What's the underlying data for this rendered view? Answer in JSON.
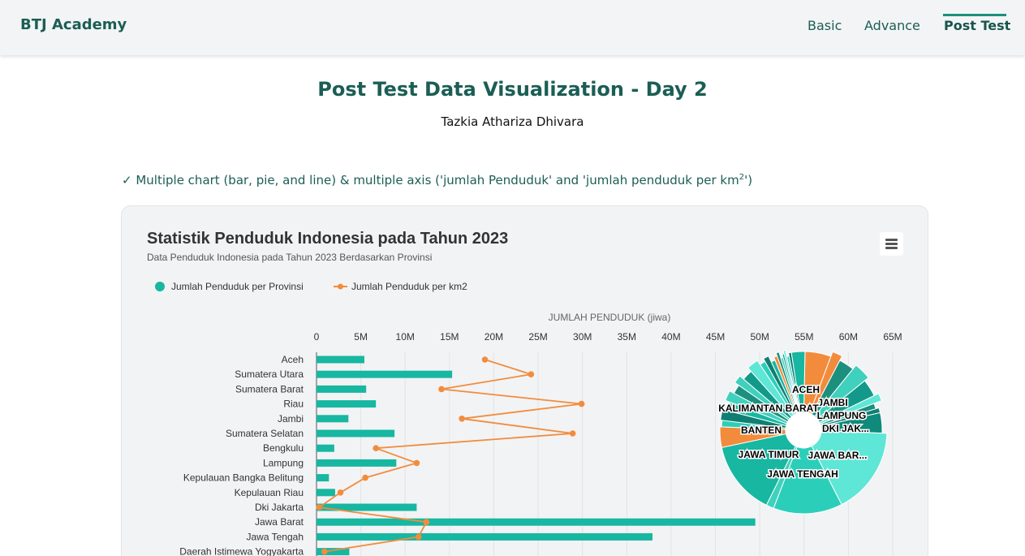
{
  "navbar": {
    "brand": "BTJ Academy",
    "links": [
      {
        "label": "Basic"
      },
      {
        "label": "Advance"
      },
      {
        "label": "Post Test",
        "active": true
      }
    ]
  },
  "page": {
    "title": "Post Test Data Visualization - Day 2",
    "author": "Tazkia Athariza Dhivara",
    "task_prefix": "✓ Multiple chart (bar, pie, and line) & multiple axis ('jumlah Penduduk' and 'jumlah penduduk per km",
    "task_sup": "2",
    "task_suffix": "')"
  },
  "colors": {
    "brand": "#1b5e55",
    "bar": "#17b7a1",
    "line": "#f28c3c"
  },
  "chart_data": {
    "type": "bar",
    "title": "Statistik Penduduk Indonesia pada Tahun 2023",
    "subtitle": "Data Penduduk Indonesia pada Tahun 2023 Berdasarkan Provinsi",
    "menu_icon": "hamburger-menu-icon",
    "xlabel": "JUMLAH PENDUDUK (jiwa)",
    "xlim": [
      0,
      65000000
    ],
    "x_ticks": [
      "0",
      "5M",
      "10M",
      "15M",
      "20M",
      "25M",
      "30M",
      "35M",
      "40M",
      "45M",
      "50M",
      "55M",
      "60M",
      "65M"
    ],
    "legend": {
      "placement": "top-left",
      "items": [
        "Jumlah Penduduk per Provinsi",
        "Jumlah Penduduk per km2"
      ]
    },
    "grid": true,
    "categories": [
      "Aceh",
      "Sumatera Utara",
      "Sumatera Barat",
      "Riau",
      "Jambi",
      "Sumatera Selatan",
      "Bengkulu",
      "Lampung",
      "Kepulauan Bangka Belitung",
      "Kepulauan Riau",
      "Dki Jakarta",
      "Jawa Barat",
      "Jawa Tengah",
      "Daerah Istimewa Yogyakarta"
    ],
    "series": [
      {
        "name": "Jumlah Penduduk per Provinsi",
        "type": "bar",
        "values": [
          5400000,
          15300000,
          5600000,
          6700000,
          3600000,
          8800000,
          2000000,
          9000000,
          1400000,
          2100000,
          11300000,
          49500000,
          37900000,
          3700000
        ]
      },
      {
        "name": "Jumlah Penduduk per km2",
        "type": "line",
        "values": [
          19000000,
          24200000,
          14100000,
          29900000,
          16400000,
          28900000,
          6700000,
          11300000,
          5500000,
          2700000,
          300000,
          12400000,
          11500000,
          900000
        ]
      }
    ],
    "pie": {
      "type": "pie",
      "labels": [
        "ACEH",
        "JAMBI",
        "LAMPUNG",
        "DKI JAK...",
        "JAWA BAR...",
        "JAWA TENGAH",
        "JAWA TIMUR",
        "BANTEN",
        "KALIMANTAN BARAT"
      ],
      "slices": [
        {
          "name": "ACEH",
          "value": 5.4
        },
        {
          "name": "",
          "value": 2.0
        },
        {
          "name": "",
          "value": 3.2
        },
        {
          "name": "",
          "value": 3.4
        },
        {
          "name": "JAMBI",
          "value": 3.6
        },
        {
          "name": "",
          "value": 1.5
        },
        {
          "name": "LAMPUNG",
          "value": 1.2
        },
        {
          "name": "",
          "value": 1.0
        },
        {
          "name": "DKI JAK...",
          "value": 4.2
        },
        {
          "name": "JAWA BAR...",
          "value": 17.0
        },
        {
          "name": "JAWA TENGAH",
          "value": 13.5
        },
        {
          "name": "",
          "value": 1.5
        },
        {
          "name": "JAWA TIMUR",
          "value": 14.5
        },
        {
          "name": "BANTEN",
          "value": 4.0
        },
        {
          "name": "",
          "value": 1.3
        },
        {
          "name": "",
          "value": 2.1
        },
        {
          "name": "",
          "value": 1.8
        },
        {
          "name": "KALIMANTAN BARAT",
          "value": 2.0
        },
        {
          "name": "",
          "value": 1.9
        },
        {
          "name": "",
          "value": 1.6
        },
        {
          "name": "",
          "value": 2.2
        },
        {
          "name": "",
          "value": 2.3
        },
        {
          "name": "",
          "value": 1.2
        },
        {
          "name": "",
          "value": 1.1
        },
        {
          "name": "",
          "value": 0.9
        },
        {
          "name": "",
          "value": 0.7
        },
        {
          "name": "",
          "value": 0.6
        },
        {
          "name": "",
          "value": 0.5
        },
        {
          "name": "",
          "value": 0.4
        },
        {
          "name": "",
          "value": 0.4
        },
        {
          "name": "",
          "value": 0.5
        },
        {
          "name": "",
          "value": 0.6
        },
        {
          "name": "",
          "value": 2.8
        }
      ]
    }
  }
}
